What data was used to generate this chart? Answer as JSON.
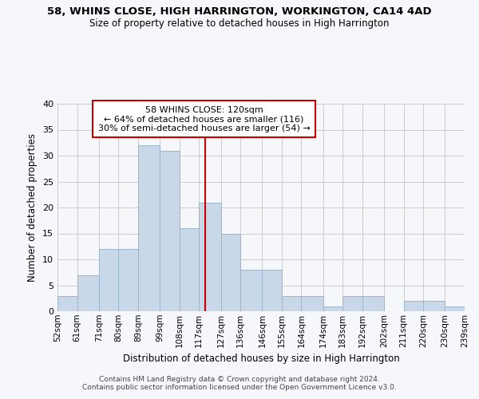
{
  "title1": "58, WHINS CLOSE, HIGH HARRINGTON, WORKINGTON, CA14 4AD",
  "title2": "Size of property relative to detached houses in High Harrington",
  "xlabel": "Distribution of detached houses by size in High Harrington",
  "ylabel": "Number of detached properties",
  "bin_edges": [
    52,
    61,
    71,
    80,
    89,
    99,
    108,
    117,
    127,
    136,
    146,
    155,
    164,
    174,
    183,
    192,
    202,
    211,
    220,
    230,
    239
  ],
  "counts": [
    3,
    7,
    12,
    12,
    32,
    31,
    16,
    21,
    15,
    8,
    8,
    3,
    3,
    1,
    3,
    3,
    0,
    2,
    2,
    1
  ],
  "bar_color": "#c8d8e8",
  "bar_edgecolor": "#9ab5cc",
  "vline_x": 120,
  "vline_color": "#cc0000",
  "annotation_line1": "58 WHINS CLOSE: 120sqm",
  "annotation_line2": "← 64% of detached houses are smaller (116)",
  "annotation_line3": "30% of semi-detached houses are larger (54) →",
  "ylim": [
    0,
    40
  ],
  "yticks": [
    0,
    5,
    10,
    15,
    20,
    25,
    30,
    35,
    40
  ],
  "grid_color": "#cccccc",
  "background_color": "#f5f7fa",
  "footer_text": "Contains HM Land Registry data © Crown copyright and database right 2024.\nContains public sector information licensed under the Open Government Licence v3.0.",
  "tick_labels": [
    "52sqm",
    "61sqm",
    "71sqm",
    "80sqm",
    "89sqm",
    "99sqm",
    "108sqm",
    "117sqm",
    "127sqm",
    "136sqm",
    "146sqm",
    "155sqm",
    "164sqm",
    "174sqm",
    "183sqm",
    "192sqm",
    "202sqm",
    "211sqm",
    "220sqm",
    "230sqm",
    "239sqm"
  ]
}
